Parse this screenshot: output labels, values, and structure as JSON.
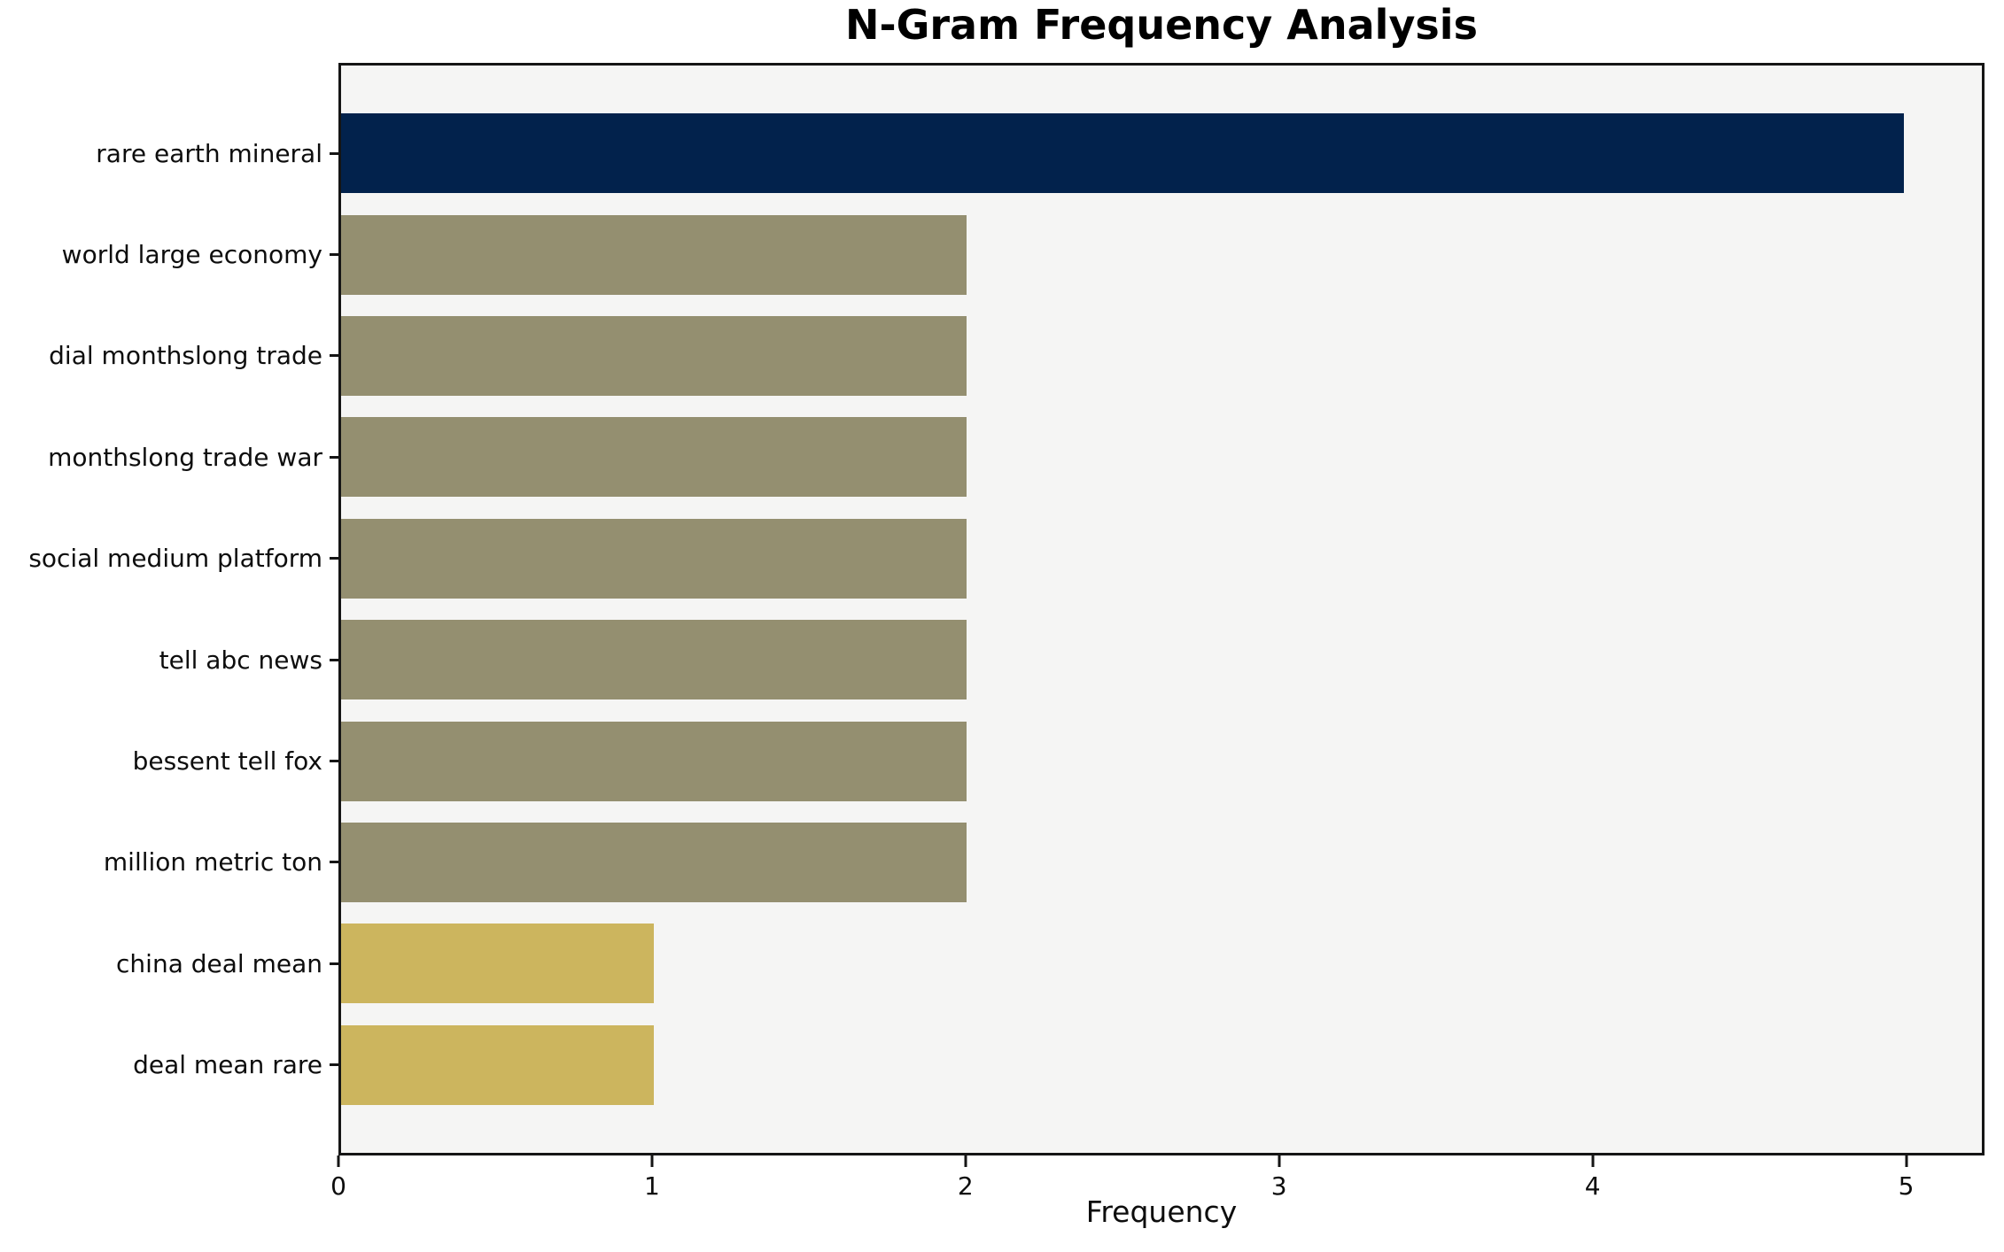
{
  "title": "N-Gram Frequency Analysis",
  "colors": {
    "page_bg": "#ffffff",
    "plot_bg": "#f5f5f4",
    "axis": "#151515",
    "bar_navy": "#02224c",
    "bar_olive": "#948f70",
    "bar_khaki": "#ccb55e"
  },
  "chart_data": {
    "type": "bar",
    "orientation": "horizontal",
    "title": "N-Gram Frequency Analysis",
    "xlabel": "Frequency",
    "ylabel": "",
    "categories": [
      "rare earth mineral",
      "world large economy",
      "dial monthslong trade",
      "monthslong trade war",
      "social medium platform",
      "tell abc news",
      "bessent tell fox",
      "million metric ton",
      "china deal mean",
      "deal mean rare"
    ],
    "values": [
      5,
      2,
      2,
      2,
      2,
      2,
      2,
      2,
      1,
      1
    ],
    "bar_colors": [
      "#02224c",
      "#948f70",
      "#948f70",
      "#948f70",
      "#948f70",
      "#948f70",
      "#948f70",
      "#948f70",
      "#ccb55e",
      "#ccb55e"
    ],
    "xlim": [
      0,
      5.25
    ],
    "xticks": [
      0,
      1,
      2,
      3,
      4,
      5
    ],
    "grid": false,
    "legend_position": "none",
    "bar_height_fraction": 0.8
  }
}
